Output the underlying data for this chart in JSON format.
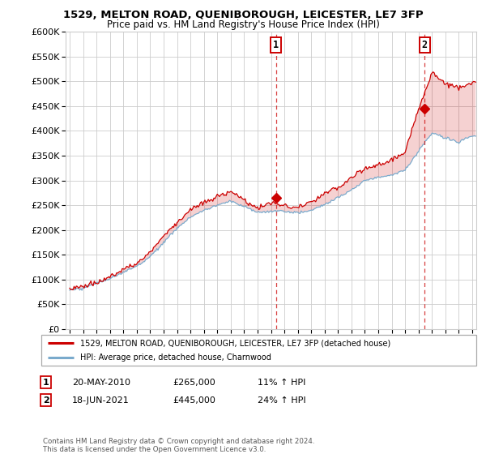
{
  "title": "1529, MELTON ROAD, QUENIBOROUGH, LEICESTER, LE7 3FP",
  "subtitle": "Price paid vs. HM Land Registry's House Price Index (HPI)",
  "legend_line1": "1529, MELTON ROAD, QUENIBOROUGH, LEICESTER, LE7 3FP (detached house)",
  "legend_line2": "HPI: Average price, detached house, Charnwood",
  "annotation1_label": "1",
  "annotation1_date": "20-MAY-2010",
  "annotation1_price": "£265,000",
  "annotation1_hpi": "11% ↑ HPI",
  "annotation1_year": 2010.38,
  "annotation1_value": 265000,
  "annotation2_label": "2",
  "annotation2_date": "18-JUN-2021",
  "annotation2_price": "£445,000",
  "annotation2_hpi": "24% ↑ HPI",
  "annotation2_year": 2021.46,
  "annotation2_value": 445000,
  "copyright": "Contains HM Land Registry data © Crown copyright and database right 2024.\nThis data is licensed under the Open Government Licence v3.0.",
  "ylim": [
    0,
    600000
  ],
  "xlim_start": 1994.7,
  "xlim_end": 2025.3,
  "red_color": "#cc0000",
  "blue_color": "#7aaacc",
  "fill_blue": "#ddeeff",
  "background_color": "#ffffff",
  "grid_color": "#cccccc",
  "years_anchor": [
    1995,
    1996,
    1997,
    1998,
    1999,
    2000,
    2001,
    2002,
    2003,
    2004,
    2005,
    2006,
    2007,
    2008,
    2009,
    2010,
    2011,
    2012,
    2013,
    2014,
    2015,
    2016,
    2017,
    2018,
    2019,
    2020,
    2021,
    2022,
    2023,
    2024,
    2025
  ],
  "hpi_anchor": [
    78000,
    83000,
    93000,
    103000,
    115000,
    128000,
    148000,
    175000,
    203000,
    225000,
    238000,
    248000,
    258000,
    248000,
    235000,
    238000,
    238000,
    235000,
    240000,
    252000,
    265000,
    280000,
    300000,
    305000,
    312000,
    320000,
    358000,
    395000,
    385000,
    378000,
    390000
  ],
  "red_anchor": [
    83000,
    88000,
    97000,
    108000,
    122000,
    138000,
    162000,
    192000,
    222000,
    248000,
    260000,
    272000,
    285000,
    270000,
    252000,
    265000,
    260000,
    255000,
    262000,
    275000,
    288000,
    305000,
    322000,
    330000,
    340000,
    352000,
    445000,
    520000,
    498000,
    488000,
    498000
  ]
}
